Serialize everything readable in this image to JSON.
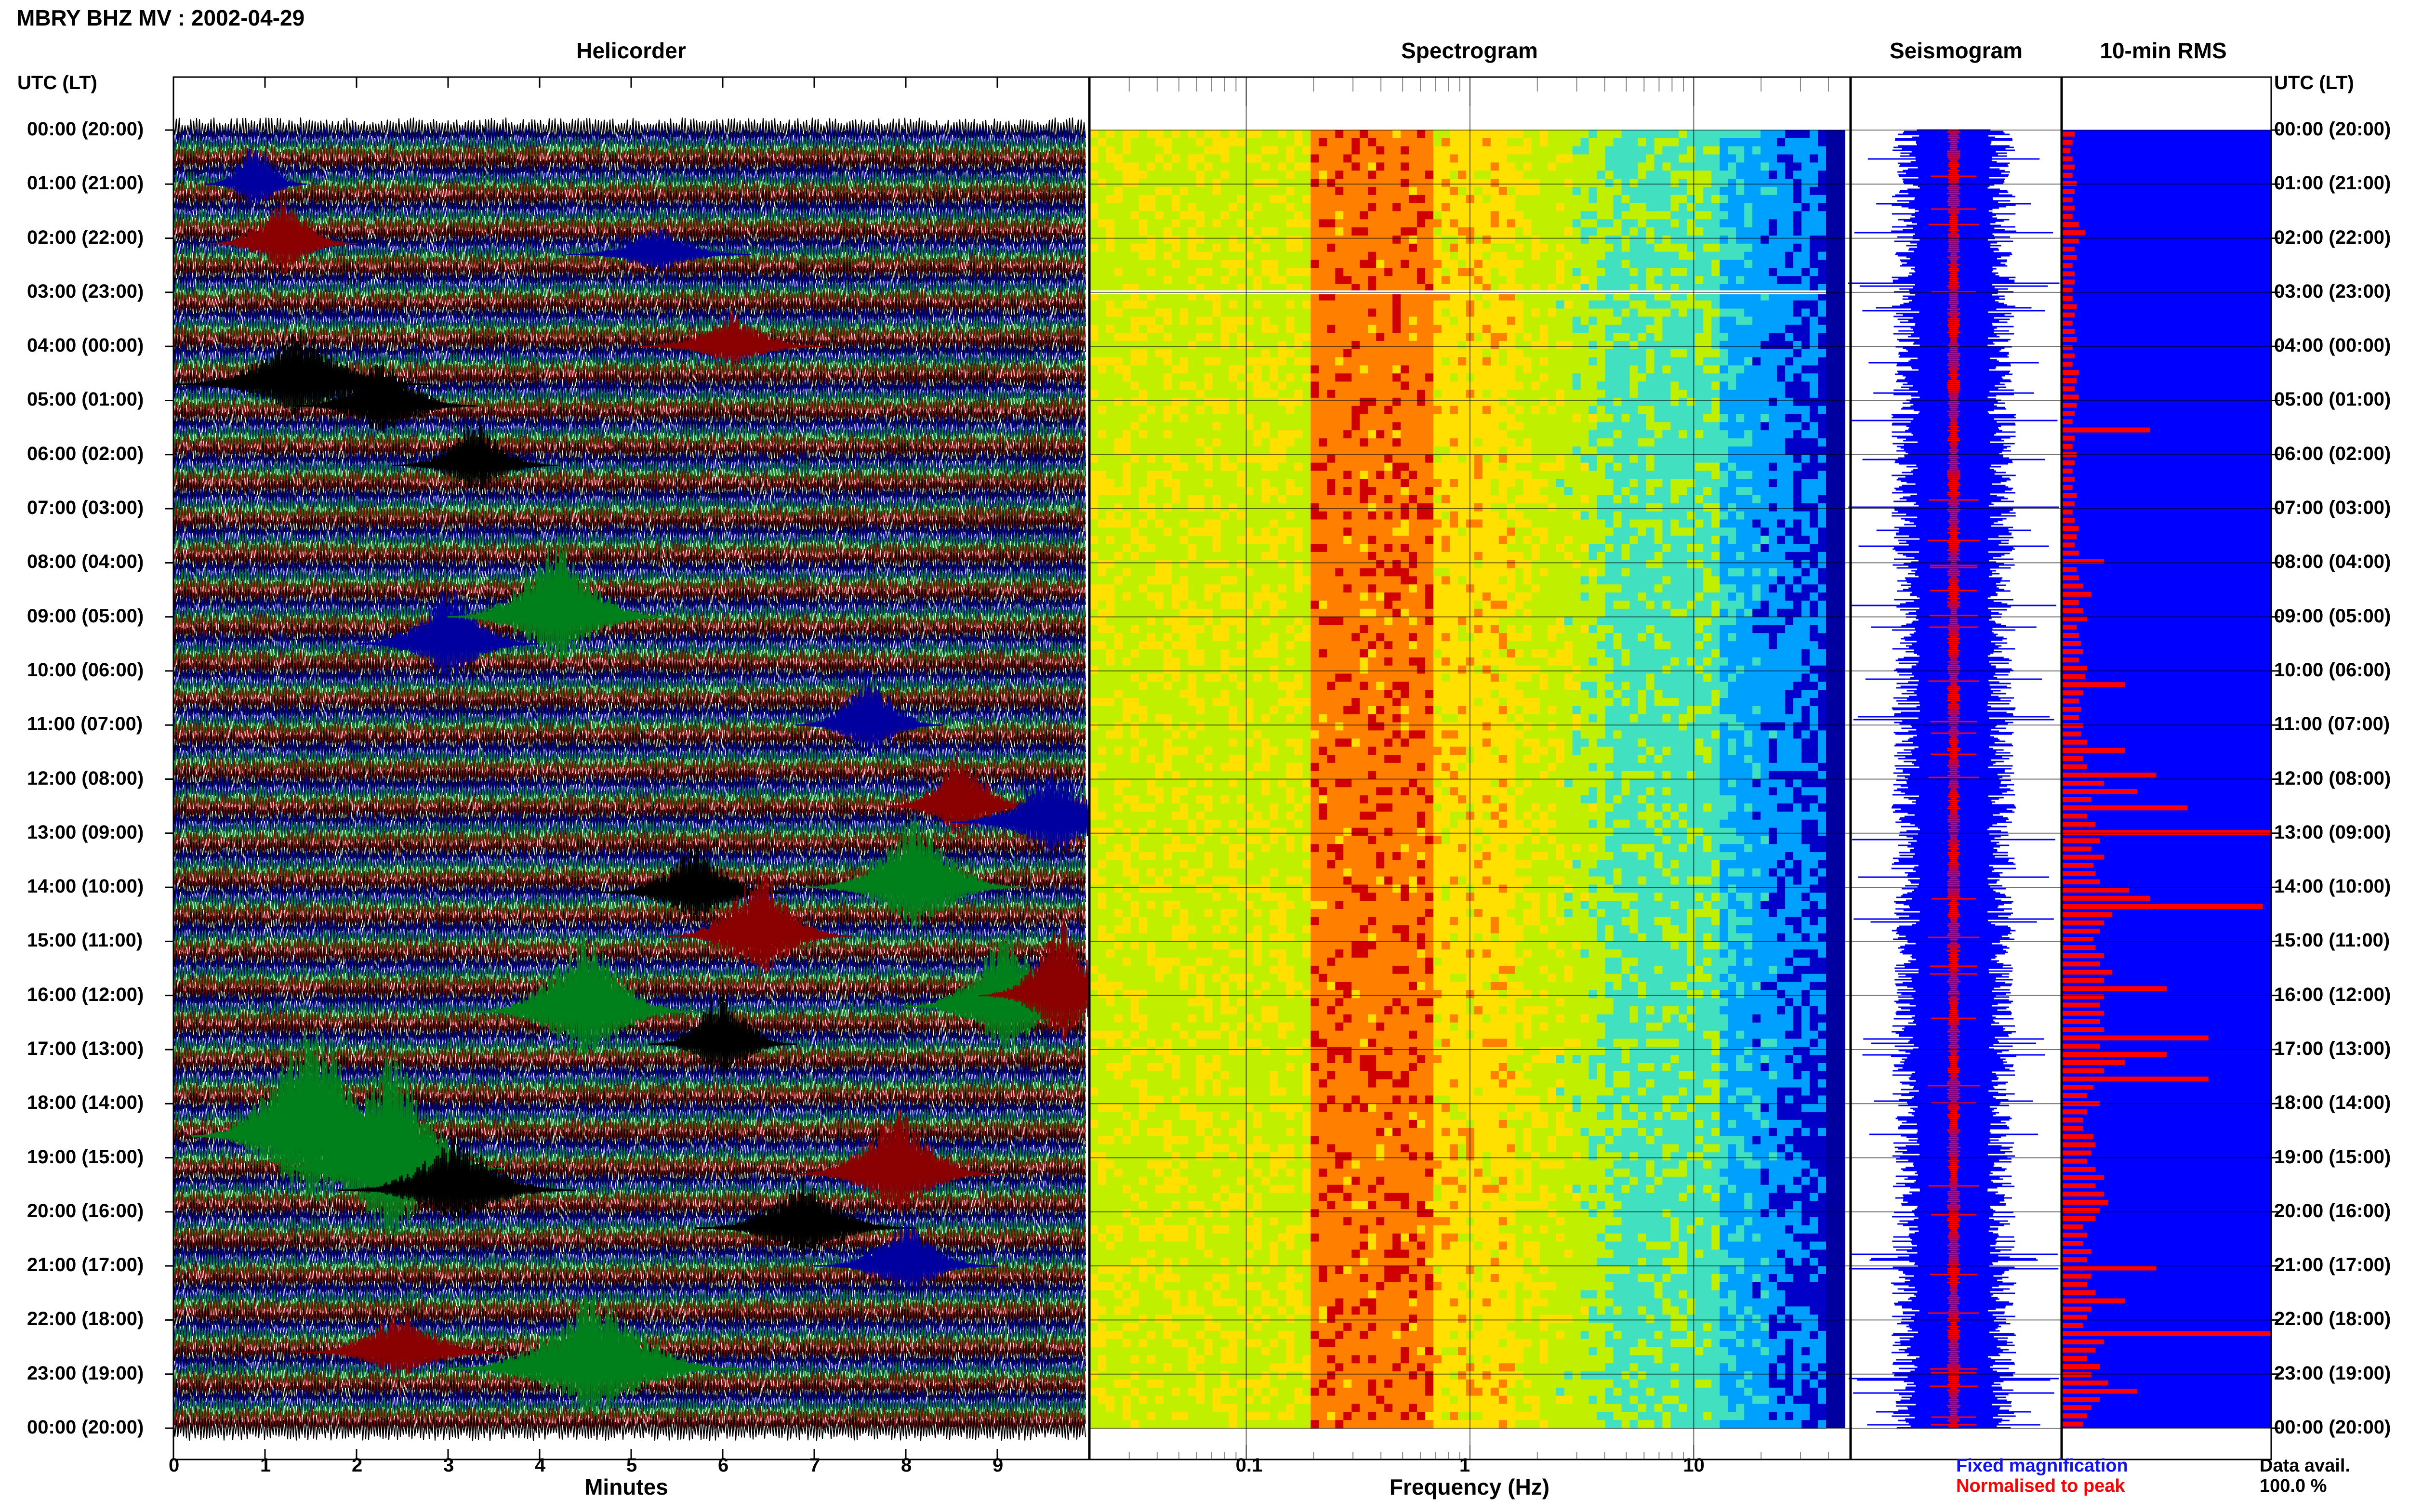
{
  "title": "MBRY BHZ MV : 2002-04-29",
  "panels": {
    "helicorder": "Helicorder",
    "spectrogram": "Spectrogram",
    "seismogram": "Seismogram",
    "rms": "10-min RMS"
  },
  "axis_header": "UTC (LT)",
  "time_labels": [
    "00:00 (20:00)",
    "01:00 (21:00)",
    "02:00 (22:00)",
    "03:00 (23:00)",
    "04:00 (00:00)",
    "05:00 (01:00)",
    "06:00 (02:00)",
    "07:00 (03:00)",
    "08:00 (04:00)",
    "09:00 (05:00)",
    "10:00 (06:00)",
    "11:00 (07:00)",
    "12:00 (08:00)",
    "13:00 (09:00)",
    "14:00 (10:00)",
    "15:00 (11:00)",
    "16:00 (12:00)",
    "17:00 (13:00)",
    "18:00 (14:00)",
    "19:00 (15:00)",
    "20:00 (16:00)",
    "21:00 (17:00)",
    "22:00 (18:00)",
    "23:00 (19:00)",
    "00:00 (20:00)"
  ],
  "legend": {
    "fixed": "Fixed magnification",
    "normalised": "Normalised to peak",
    "avail_label": "Data avail.",
    "avail_value": "100.0 %"
  },
  "colors": {
    "trace_cycle": [
      "#000000",
      "#0000a0",
      "#00801a",
      "#8b0000"
    ],
    "seismogram_blue": "#0000ff",
    "seismogram_red": "#ff0000",
    "rms_fill": "#0000ff",
    "rms_bar": "#ff0000"
  },
  "chart_data": [
    {
      "type": "line",
      "name": "helicorder",
      "title": "Helicorder",
      "xlabel": "Minutes",
      "x_ticks": [
        "0",
        "1",
        "2",
        "3",
        "4",
        "5",
        "6",
        "7",
        "8",
        "9"
      ],
      "xlim": [
        0,
        10
      ],
      "rows_per_hour": 6,
      "hours": 24
    },
    {
      "type": "heatmap",
      "name": "spectrogram",
      "title": "Spectrogram",
      "xlabel": "Frequency (Hz)",
      "x_scale": "log",
      "x_ticks": [
        "0.1",
        "1",
        "10"
      ],
      "xlim": [
        0.02,
        50
      ],
      "peak_band_hz": [
        0.2,
        0.7
      ],
      "colormap": [
        "#0000c8",
        "#00a0ff",
        "#40e0c0",
        "#c0f000",
        "#ffe000",
        "#ff8000",
        "#d00000"
      ]
    },
    {
      "type": "line",
      "name": "seismogram",
      "title": "Seismogram",
      "series": [
        {
          "name": "Fixed magnification"
        },
        {
          "name": "Normalised to peak"
        }
      ]
    },
    {
      "type": "bar",
      "name": "rms",
      "title": "10-min RMS",
      "interval_minutes": 10,
      "values": [
        0.06,
        0.05,
        0.04,
        0.05,
        0.06,
        0.05,
        0.07,
        0.06,
        0.05,
        0.06,
        0.05,
        0.08,
        0.11,
        0.08,
        0.06,
        0.07,
        0.05,
        0.06,
        0.06,
        0.05,
        0.05,
        0.07,
        0.06,
        0.05,
        0.06,
        0.07,
        0.05,
        0.06,
        0.05,
        0.08,
        0.07,
        0.06,
        0.08,
        0.07,
        0.06,
        0.05,
        0.42,
        0.06,
        0.05,
        0.07,
        0.06,
        0.05,
        0.06,
        0.05,
        0.07,
        0.06,
        0.05,
        0.06,
        0.08,
        0.07,
        0.06,
        0.08,
        0.2,
        0.07,
        0.08,
        0.1,
        0.14,
        0.08,
        0.1,
        0.12,
        0.07,
        0.08,
        0.09,
        0.1,
        0.08,
        0.12,
        0.11,
        0.3,
        0.1,
        0.08,
        0.09,
        0.08,
        0.1,
        0.09,
        0.12,
        0.3,
        0.1,
        0.12,
        0.45,
        0.2,
        0.36,
        0.14,
        0.6,
        0.12,
        0.16,
        1.0,
        0.18,
        0.14,
        0.2,
        0.15,
        0.16,
        0.18,
        0.32,
        0.42,
        0.96,
        0.24,
        0.2,
        0.18,
        0.15,
        0.16,
        0.2,
        0.18,
        0.24,
        0.2,
        0.5,
        0.2,
        0.18,
        0.2,
        0.18,
        0.2,
        0.7,
        0.18,
        0.5,
        0.3,
        0.2,
        0.7,
        0.15,
        0.12,
        0.18,
        0.12,
        0.1,
        0.1,
        0.15,
        0.16,
        0.14,
        0.12,
        0.16,
        0.2,
        0.16,
        0.2,
        0.22,
        0.18,
        0.16,
        0.1,
        0.12,
        0.1,
        0.14,
        0.12,
        0.45,
        0.14,
        0.12,
        0.16,
        0.3,
        0.14,
        0.12,
        0.1,
        1.0,
        0.2,
        0.16,
        0.12,
        0.18,
        0.14,
        0.22,
        0.36,
        0.18,
        0.14,
        0.12,
        0.1
      ]
    }
  ]
}
